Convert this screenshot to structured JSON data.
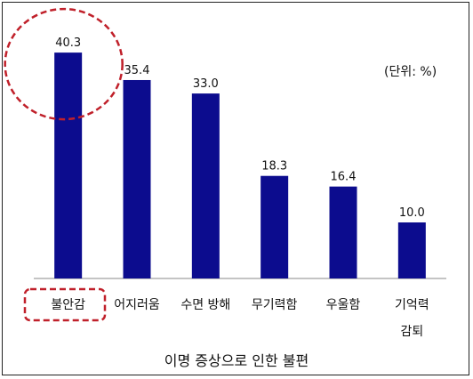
{
  "chart_data": {
    "type": "bar",
    "categories": [
      [
        "불안감"
      ],
      [
        "어지러움"
      ],
      [
        "수면 방해"
      ],
      [
        "무기력함"
      ],
      [
        "우울함"
      ],
      [
        "기억력",
        "감퇴"
      ]
    ],
    "values": [
      40.3,
      35.4,
      33.0,
      18.3,
      16.4,
      10.0
    ],
    "value_labels": [
      "40.3",
      "35.4",
      "33.0",
      "18.3",
      "16.4",
      "10.0"
    ],
    "xlabel": "이명 증상으로 인한 불편",
    "ylabel": "",
    "unit_note": "(단위: %)",
    "ylim": [
      0,
      45
    ],
    "grid": false,
    "highlight_index": 0,
    "colors": {
      "bar": "#0c0c8e",
      "highlight": "#c0202a",
      "axis": "#888888"
    }
  }
}
